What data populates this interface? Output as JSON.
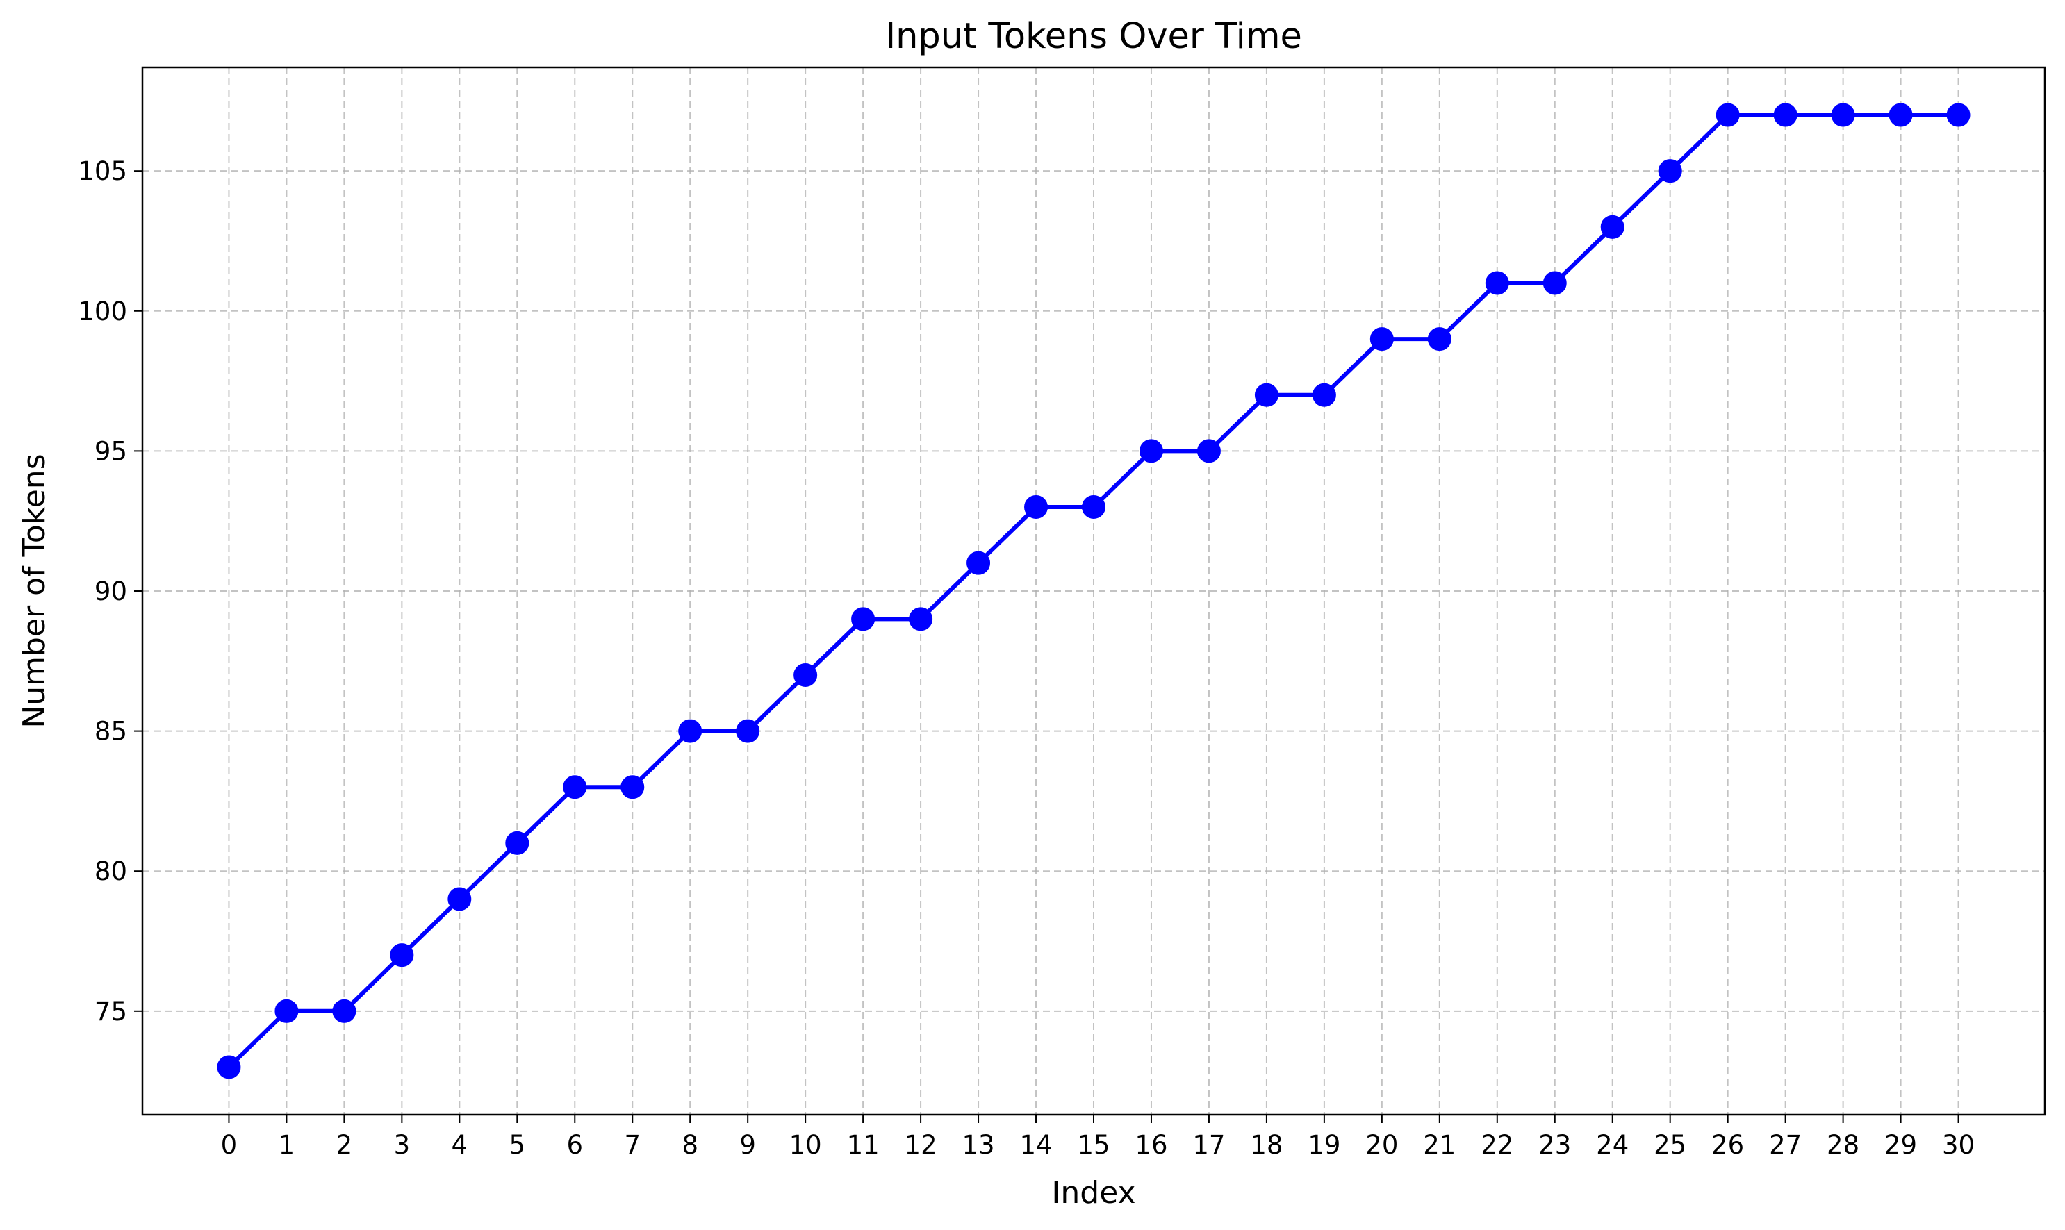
{
  "chart_data": {
    "type": "line",
    "title": "Input Tokens Over Time",
    "xlabel": "Index",
    "ylabel": "Number of Tokens",
    "x": [
      0,
      1,
      2,
      3,
      4,
      5,
      6,
      7,
      8,
      9,
      10,
      11,
      12,
      13,
      14,
      15,
      16,
      17,
      18,
      19,
      20,
      21,
      22,
      23,
      24,
      25,
      26,
      27,
      28,
      29,
      30
    ],
    "series": [
      {
        "values": [
          73,
          75,
          75,
          77,
          79,
          81,
          83,
          83,
          85,
          85,
          87,
          89,
          89,
          91,
          93,
          93,
          95,
          95,
          97,
          97,
          99,
          99,
          101,
          101,
          103,
          105,
          107,
          107,
          107,
          107,
          107
        ],
        "color": "#0000ff",
        "marker": "circle"
      }
    ],
    "xticks": [
      "0",
      "1",
      "2",
      "3",
      "4",
      "5",
      "6",
      "7",
      "8",
      "9",
      "10",
      "11",
      "12",
      "13",
      "14",
      "15",
      "16",
      "17",
      "18",
      "19",
      "20",
      "21",
      "22",
      "23",
      "24",
      "25",
      "26",
      "27",
      "28",
      "29",
      "30"
    ],
    "yticks": [
      "75",
      "80",
      "85",
      "90",
      "95",
      "100",
      "105"
    ],
    "xlim": [
      -1.5,
      31.5
    ],
    "ylim": [
      71.3,
      108.7
    ],
    "grid": true,
    "legend": "none"
  }
}
